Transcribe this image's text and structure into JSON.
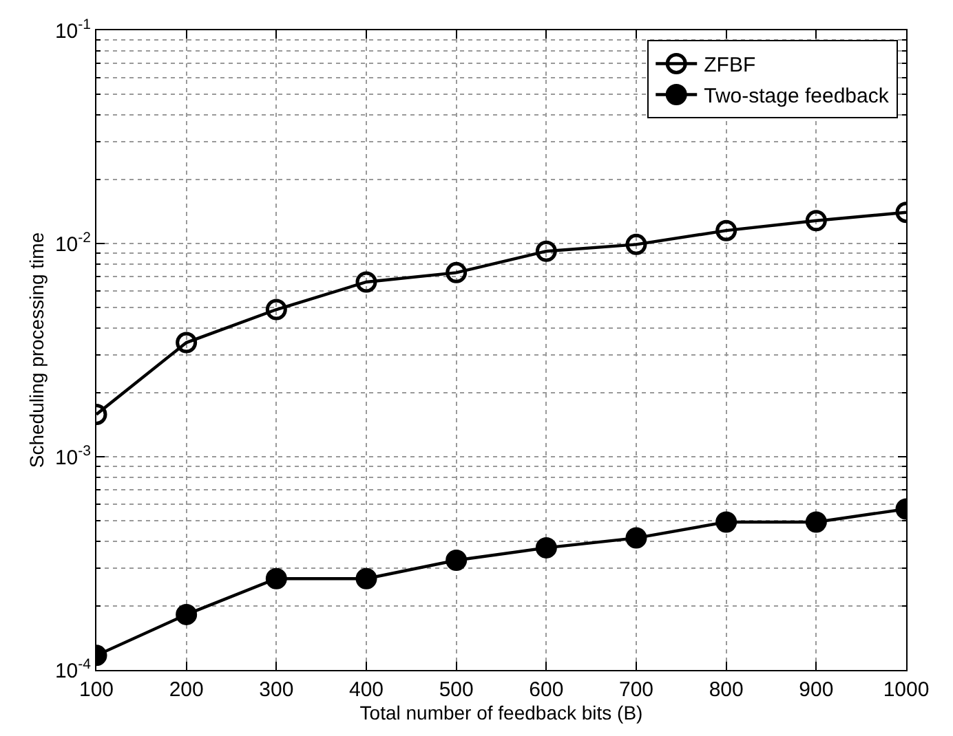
{
  "chart_data": {
    "type": "line",
    "xlabel": "Total number of feedback bits (B)",
    "ylabel": "Scheduling processing time",
    "x": [
      100,
      200,
      300,
      400,
      500,
      600,
      700,
      800,
      900,
      1000
    ],
    "series": [
      {
        "name": "ZFBF",
        "color": "#000000",
        "marker": "circle-open",
        "values": [
          0.00158,
          0.00343,
          0.0049,
          0.0066,
          0.0073,
          0.0092,
          0.0099,
          0.0115,
          0.0128,
          0.014
        ]
      },
      {
        "name": "Two-stage feedback",
        "color": "#000000",
        "marker": "circle",
        "values": [
          0.000117,
          0.000182,
          0.000268,
          0.000268,
          0.000327,
          0.000374,
          0.000416,
          0.000494,
          0.000494,
          0.000569
        ]
      }
    ],
    "log": "y",
    "xlim": [
      100,
      1000
    ],
    "xticks": [
      100,
      200,
      300,
      400,
      500,
      600,
      700,
      800,
      900,
      1000
    ],
    "ylim": [
      0.0001,
      0.1
    ],
    "yticks": [
      {
        "value": 0.0001,
        "label": "10$^{-4}$"
      },
      {
        "value": 0.001,
        "label": "10$^{-3}$"
      },
      {
        "value": 0.01,
        "label": "10$^{-2}$"
      },
      {
        "value": 0.1,
        "label": "10$^{-1}$"
      }
    ],
    "grid": true,
    "legend": "top right",
    "line_style": "solid"
  }
}
